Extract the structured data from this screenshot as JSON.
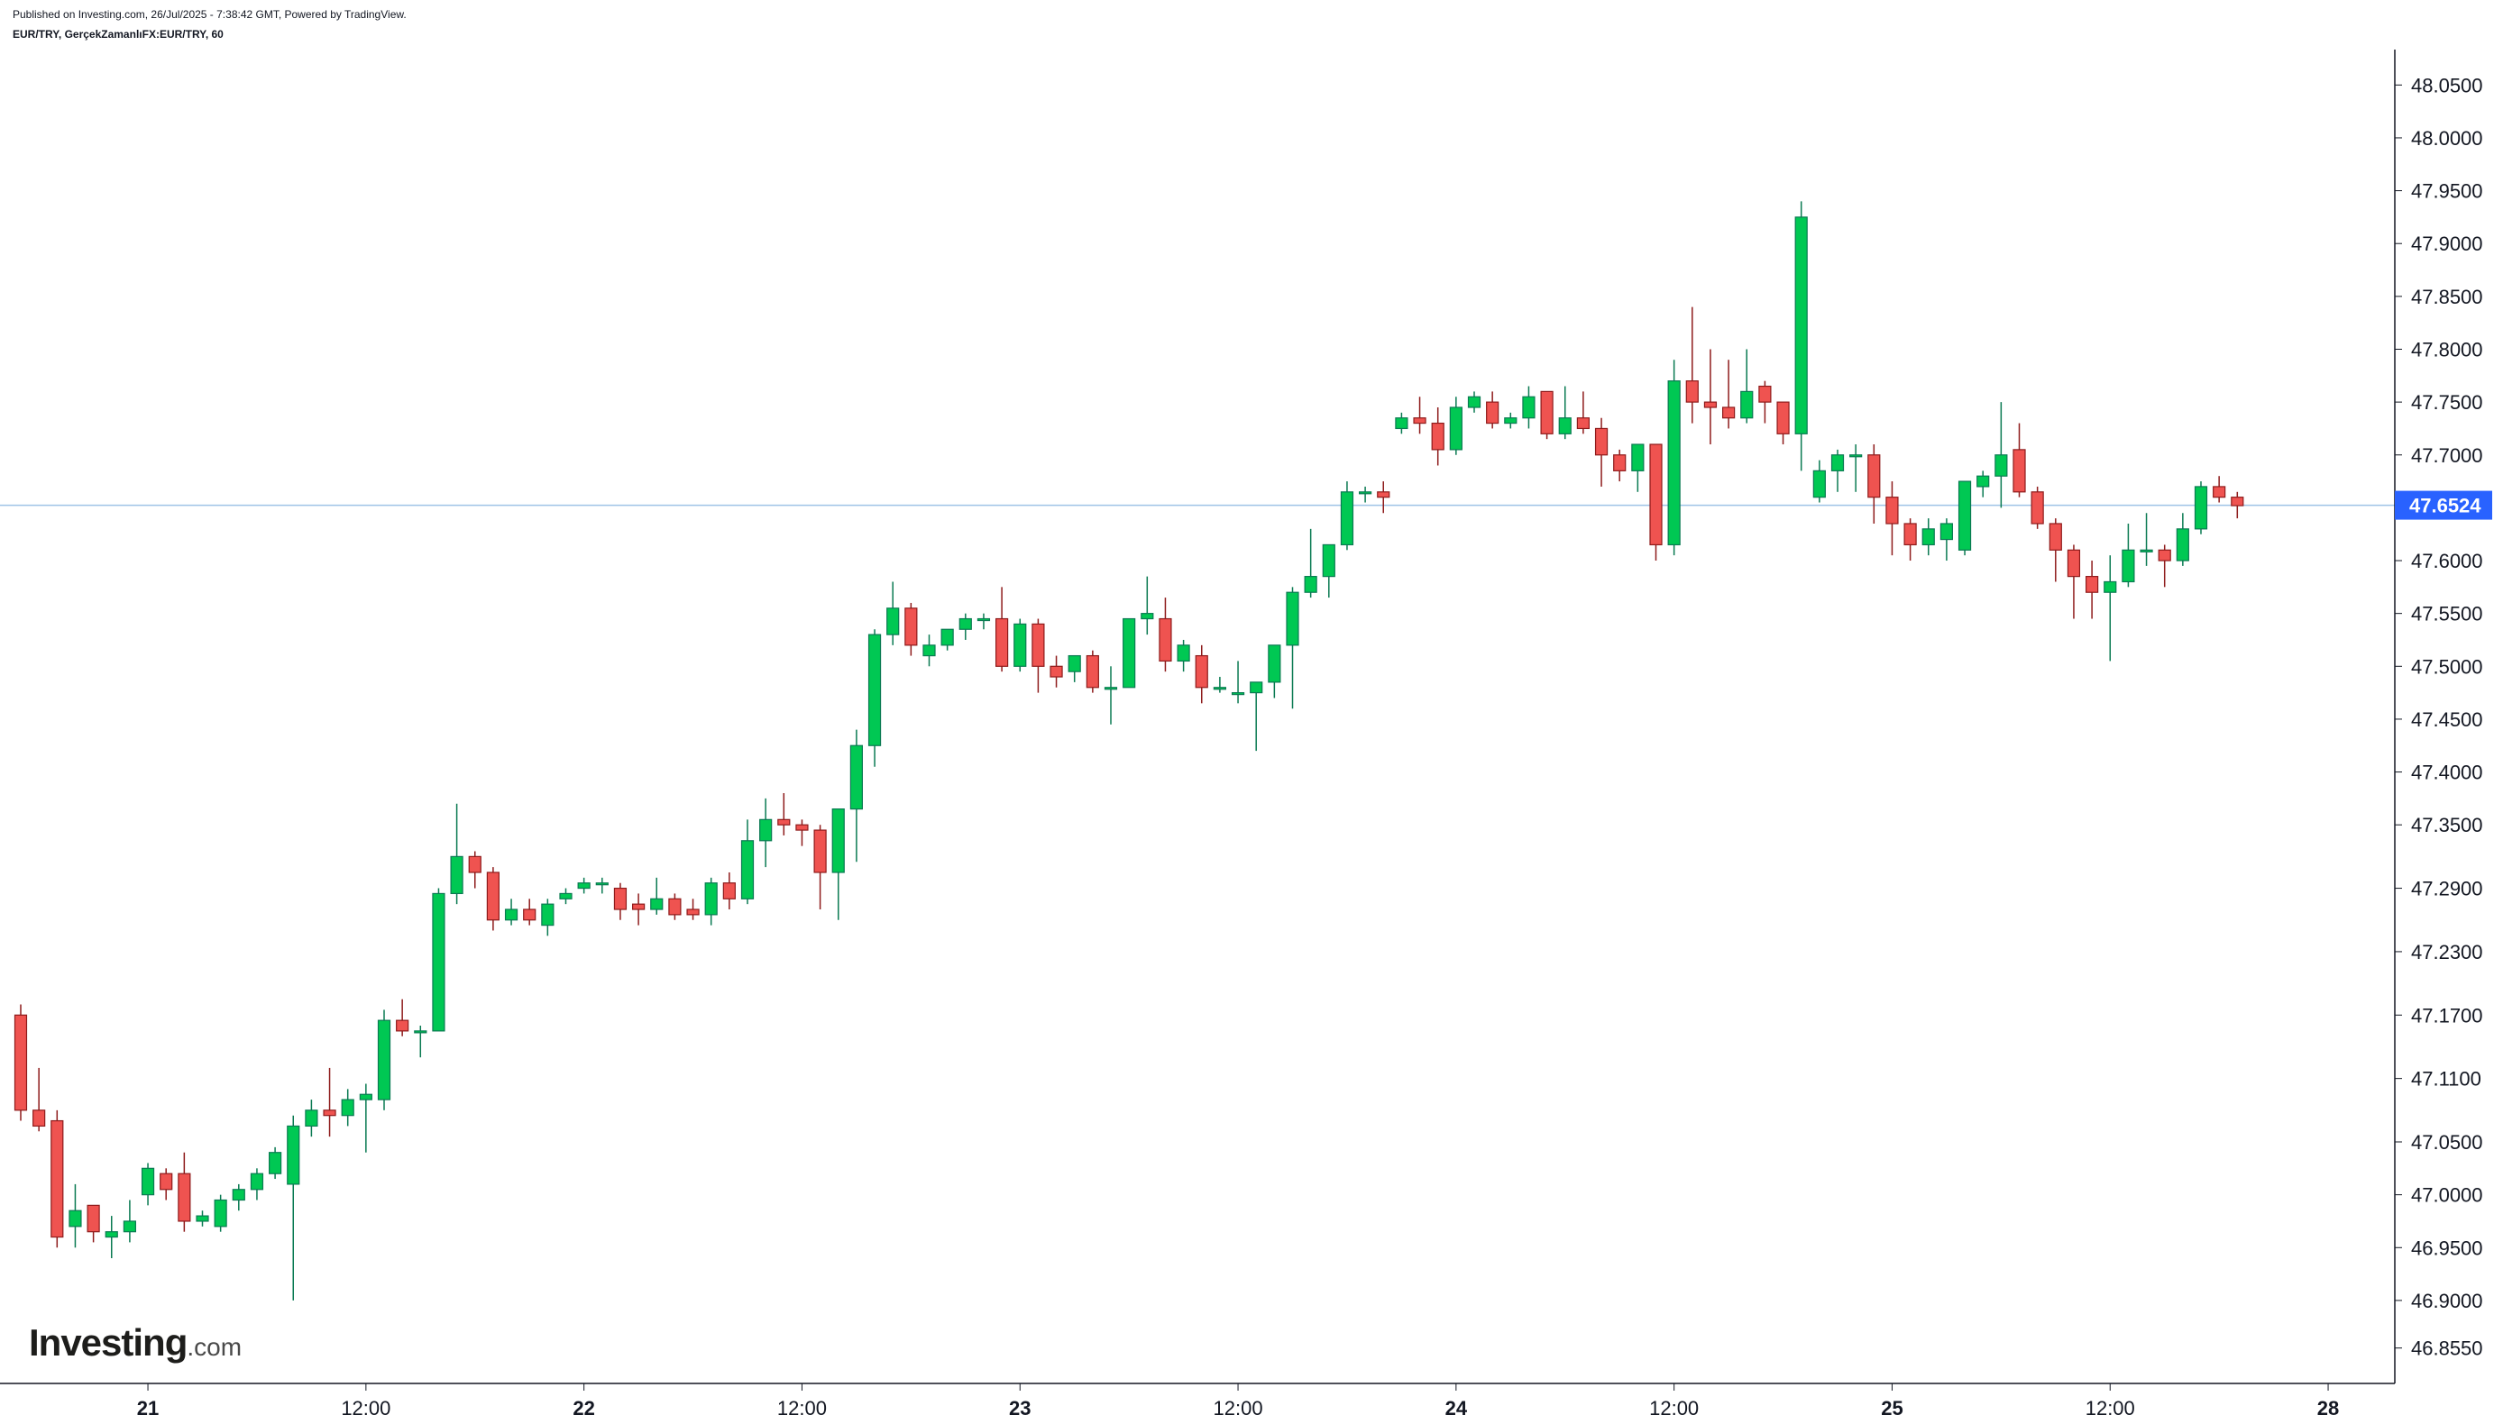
{
  "header": {
    "published": "Published on Investing.com, 26/Jul/2025 - 7:38:42 GMT, Powered by TradingView.",
    "symbol": "EUR/TRY, GerçekZamanlıFX:EUR/TRY, 60"
  },
  "logo": {
    "brand": "Investing",
    "tld": ".com"
  },
  "colors": {
    "up": "#089981",
    "upFill": "#00c853",
    "down": "#c62828",
    "downFill": "#ef5350",
    "priceLine": "#9ec3e6",
    "priceTag": "#2962ff"
  },
  "chart_data": {
    "type": "candlestick",
    "title": "EUR/TRY, GerçekZamanlıFX:EUR/TRY, 60",
    "xlabel": "",
    "ylabel": "",
    "ylim": [
      46.83,
      48.075
    ],
    "grid": false,
    "last_price": 47.6524,
    "last_price_label": "47.6524",
    "y_ticks": [
      46.855,
      46.9,
      46.95,
      47.0,
      47.05,
      47.11,
      47.17,
      47.23,
      47.29,
      47.35,
      47.4,
      47.45,
      47.5,
      47.55,
      47.6,
      47.65,
      47.7,
      47.75,
      47.8,
      47.85,
      47.9,
      47.95,
      48.0,
      48.05
    ],
    "y_tick_labels": [
      "46.8550",
      "46.9000",
      "46.9500",
      "47.0000",
      "47.0500",
      "47.1100",
      "47.1700",
      "47.2300",
      "47.2900",
      "47.3500",
      "47.4000",
      "47.4500",
      "47.5000",
      "47.5500",
      "47.6000",
      "47.6500",
      "47.7000",
      "47.7500",
      "47.8000",
      "47.8500",
      "47.9000",
      "47.9500",
      "48.0000",
      "48.0500"
    ],
    "x_ticks": [
      {
        "label": "21",
        "index": 7
      },
      {
        "label": "12:00",
        "index": 19
      },
      {
        "label": "22",
        "index": 31
      },
      {
        "label": "12:00",
        "index": 43
      },
      {
        "label": "23",
        "index": 55
      },
      {
        "label": "12:00",
        "index": 67
      },
      {
        "label": "24",
        "index": 79
      },
      {
        "label": "12:00",
        "index": 91
      },
      {
        "label": "25",
        "index": 103
      },
      {
        "label": "12:00",
        "index": 115
      },
      {
        "label": "28",
        "index": 127
      }
    ],
    "candles": [
      [
        47.17,
        47.18,
        47.07,
        47.08
      ],
      [
        47.08,
        47.12,
        47.06,
        47.065
      ],
      [
        47.07,
        47.08,
        46.95,
        46.96
      ],
      [
        46.97,
        47.01,
        46.95,
        46.985
      ],
      [
        46.99,
        46.99,
        46.955,
        46.965
      ],
      [
        46.96,
        46.98,
        46.94,
        46.965
      ],
      [
        46.965,
        46.995,
        46.955,
        46.975
      ],
      [
        47.0,
        47.03,
        46.99,
        47.025
      ],
      [
        47.02,
        47.025,
        46.995,
        47.005
      ],
      [
        47.02,
        47.04,
        46.965,
        46.975
      ],
      [
        46.975,
        46.985,
        46.97,
        46.98
      ],
      [
        46.97,
        47.0,
        46.965,
        46.995
      ],
      [
        46.995,
        47.01,
        46.985,
        47.005
      ],
      [
        47.005,
        47.025,
        46.995,
        47.02
      ],
      [
        47.02,
        47.045,
        47.015,
        47.04
      ],
      [
        47.01,
        47.075,
        46.9,
        47.065
      ],
      [
        47.065,
        47.09,
        47.055,
        47.08
      ],
      [
        47.08,
        47.12,
        47.055,
        47.075
      ],
      [
        47.075,
        47.1,
        47.065,
        47.09
      ],
      [
        47.09,
        47.105,
        47.04,
        47.095
      ],
      [
        47.09,
        47.175,
        47.08,
        47.165
      ],
      [
        47.165,
        47.185,
        47.15,
        47.155
      ],
      [
        47.155,
        47.16,
        47.13,
        47.155
      ],
      [
        47.155,
        47.29,
        47.155,
        47.285
      ],
      [
        47.285,
        47.37,
        47.275,
        47.32
      ],
      [
        47.32,
        47.325,
        47.29,
        47.305
      ],
      [
        47.305,
        47.31,
        47.25,
        47.26
      ],
      [
        47.26,
        47.28,
        47.255,
        47.27
      ],
      [
        47.27,
        47.28,
        47.255,
        47.26
      ],
      [
        47.255,
        47.28,
        47.245,
        47.275
      ],
      [
        47.28,
        47.29,
        47.275,
        47.285
      ],
      [
        47.29,
        47.3,
        47.285,
        47.295
      ],
      [
        47.295,
        47.3,
        47.285,
        47.295
      ],
      [
        47.29,
        47.295,
        47.26,
        47.27
      ],
      [
        47.275,
        47.285,
        47.255,
        47.27
      ],
      [
        47.27,
        47.3,
        47.265,
        47.28
      ],
      [
        47.28,
        47.285,
        47.26,
        47.265
      ],
      [
        47.27,
        47.28,
        47.26,
        47.265
      ],
      [
        47.265,
        47.3,
        47.255,
        47.295
      ],
      [
        47.295,
        47.305,
        47.27,
        47.28
      ],
      [
        47.28,
        47.355,
        47.275,
        47.335
      ],
      [
        47.335,
        47.375,
        47.31,
        47.355
      ],
      [
        47.355,
        47.38,
        47.34,
        47.35
      ],
      [
        47.35,
        47.355,
        47.33,
        47.345
      ],
      [
        47.345,
        47.35,
        47.27,
        47.305
      ],
      [
        47.305,
        47.365,
        47.26,
        47.365
      ],
      [
        47.365,
        47.44,
        47.315,
        47.425
      ],
      [
        47.425,
        47.535,
        47.405,
        47.53
      ],
      [
        47.53,
        47.58,
        47.52,
        47.555
      ],
      [
        47.555,
        47.56,
        47.51,
        47.52
      ],
      [
        47.51,
        47.53,
        47.5,
        47.52
      ],
      [
        47.52,
        47.535,
        47.515,
        47.535
      ],
      [
        47.535,
        47.55,
        47.525,
        47.545
      ],
      [
        47.545,
        47.55,
        47.535,
        47.545
      ],
      [
        47.545,
        47.575,
        47.495,
        47.5
      ],
      [
        47.5,
        47.545,
        47.495,
        47.54
      ],
      [
        47.54,
        47.545,
        47.475,
        47.5
      ],
      [
        47.5,
        47.51,
        47.48,
        47.49
      ],
      [
        47.495,
        47.51,
        47.485,
        47.51
      ],
      [
        47.51,
        47.515,
        47.475,
        47.48
      ],
      [
        47.48,
        47.5,
        47.445,
        47.48
      ],
      [
        47.48,
        47.545,
        47.48,
        47.545
      ],
      [
        47.545,
        47.585,
        47.53,
        47.55
      ],
      [
        47.545,
        47.565,
        47.495,
        47.505
      ],
      [
        47.505,
        47.525,
        47.495,
        47.52
      ],
      [
        47.51,
        47.52,
        47.465,
        47.48
      ],
      [
        47.48,
        47.49,
        47.475,
        47.48
      ],
      [
        47.475,
        47.505,
        47.465,
        47.475
      ],
      [
        47.475,
        47.485,
        47.42,
        47.485
      ],
      [
        47.485,
        47.52,
        47.47,
        47.52
      ],
      [
        47.52,
        47.575,
        47.46,
        47.57
      ],
      [
        47.57,
        47.63,
        47.565,
        47.585
      ],
      [
        47.585,
        47.615,
        47.565,
        47.615
      ],
      [
        47.615,
        47.675,
        47.61,
        47.665
      ],
      [
        47.665,
        47.67,
        47.655,
        47.665
      ],
      [
        47.665,
        47.675,
        47.645,
        47.66
      ],
      [
        47.725,
        47.74,
        47.72,
        47.735
      ],
      [
        47.735,
        47.755,
        47.72,
        47.73
      ],
      [
        47.73,
        47.745,
        47.69,
        47.705
      ],
      [
        47.705,
        47.755,
        47.7,
        47.745
      ],
      [
        47.745,
        47.76,
        47.74,
        47.755
      ],
      [
        47.75,
        47.76,
        47.725,
        47.73
      ],
      [
        47.73,
        47.74,
        47.725,
        47.735
      ],
      [
        47.735,
        47.765,
        47.725,
        47.755
      ],
      [
        47.76,
        47.76,
        47.715,
        47.72
      ],
      [
        47.72,
        47.765,
        47.715,
        47.735
      ],
      [
        47.735,
        47.76,
        47.72,
        47.725
      ],
      [
        47.725,
        47.735,
        47.67,
        47.7
      ],
      [
        47.7,
        47.705,
        47.675,
        47.685
      ],
      [
        47.685,
        47.71,
        47.665,
        47.71
      ],
      [
        47.71,
        47.71,
        47.6,
        47.615
      ],
      [
        47.615,
        47.79,
        47.605,
        47.77
      ],
      [
        47.77,
        47.84,
        47.73,
        47.75
      ],
      [
        47.75,
        47.8,
        47.71,
        47.745
      ],
      [
        47.745,
        47.79,
        47.725,
        47.735
      ],
      [
        47.735,
        47.8,
        47.73,
        47.76
      ],
      [
        47.765,
        47.77,
        47.73,
        47.75
      ],
      [
        47.75,
        47.75,
        47.71,
        47.72
      ],
      [
        47.72,
        47.94,
        47.685,
        47.925
      ],
      [
        47.66,
        47.695,
        47.655,
        47.685
      ],
      [
        47.685,
        47.705,
        47.665,
        47.7
      ],
      [
        47.7,
        47.71,
        47.665,
        47.7
      ],
      [
        47.7,
        47.71,
        47.635,
        47.66
      ],
      [
        47.66,
        47.675,
        47.605,
        47.635
      ],
      [
        47.635,
        47.64,
        47.6,
        47.615
      ],
      [
        47.615,
        47.64,
        47.605,
        47.63
      ],
      [
        47.62,
        47.64,
        47.6,
        47.635
      ],
      [
        47.61,
        47.675,
        47.605,
        47.675
      ],
      [
        47.67,
        47.685,
        47.66,
        47.68
      ],
      [
        47.68,
        47.75,
        47.65,
        47.7
      ],
      [
        47.705,
        47.73,
        47.66,
        47.665
      ],
      [
        47.665,
        47.67,
        47.63,
        47.635
      ],
      [
        47.635,
        47.64,
        47.58,
        47.61
      ],
      [
        47.61,
        47.615,
        47.545,
        47.585
      ],
      [
        47.585,
        47.6,
        47.545,
        47.57
      ],
      [
        47.57,
        47.605,
        47.505,
        47.58
      ],
      [
        47.58,
        47.635,
        47.575,
        47.61
      ],
      [
        47.61,
        47.645,
        47.595,
        47.61
      ],
      [
        47.61,
        47.615,
        47.575,
        47.6
      ],
      [
        47.6,
        47.645,
        47.595,
        47.63
      ],
      [
        47.63,
        47.675,
        47.625,
        47.67
      ],
      [
        47.67,
        47.68,
        47.655,
        47.66
      ],
      [
        47.66,
        47.665,
        47.64,
        47.652
      ]
    ]
  }
}
